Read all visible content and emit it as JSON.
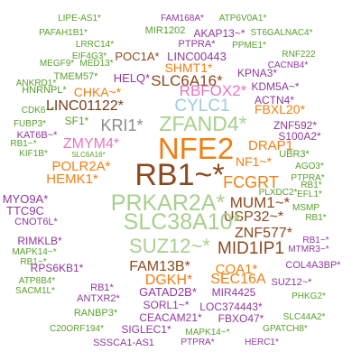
{
  "colors": {
    "background": "#ffffff",
    "green": "#5aa02c",
    "light_green": "#a8d08d",
    "orange": "#f07f12",
    "brown": "#8b4a1e",
    "purple": "#8e3a9d",
    "pink": "#e377c2",
    "light_blue": "#9ecae1",
    "gray": "#8c8c8c",
    "dark_brown": "#7a3b1a"
  },
  "words": [
    {
      "text": "LIPE-AS1*",
      "color": "green"
    },
    {
      "text": "FAM168A*",
      "color": "purple"
    },
    {
      "text": "ATP6V0A1*",
      "color": "green"
    },
    {
      "text": "PAFAH1B1*",
      "color": "green"
    },
    {
      "text": "MIR1202",
      "color": "green"
    },
    {
      "text": "AKAP13~*",
      "color": "purple"
    },
    {
      "text": "ST6GALNAC4*",
      "color": "green"
    },
    {
      "text": "LRRC14*",
      "color": "green"
    },
    {
      "text": "PTPRA*",
      "color": "purple"
    },
    {
      "text": "PPME1*",
      "color": "green"
    },
    {
      "text": "EIF4G3*",
      "color": "green"
    },
    {
      "text": "POC1A*",
      "color": "brown"
    },
    {
      "text": "LINC00443",
      "color": "purple"
    },
    {
      "text": "RNF222",
      "color": "green"
    },
    {
      "text": "MEGF9*",
      "color": "green"
    },
    {
      "text": "MED13*",
      "color": "green"
    },
    {
      "text": "SHMT1*",
      "color": "orange"
    },
    {
      "text": "CACNB4*",
      "color": "purple"
    },
    {
      "text": "ANKRD1*",
      "color": "green"
    },
    {
      "text": "TMEM57*",
      "color": "green"
    },
    {
      "text": "HELQ*",
      "color": "purple"
    },
    {
      "text": "SLC6A16*",
      "color": "brown"
    },
    {
      "text": "KPNA3*",
      "color": "purple"
    },
    {
      "text": "HNRNPL*",
      "color": "green"
    },
    {
      "text": "KDM5A~*",
      "color": "purple"
    },
    {
      "text": "CHKA~*",
      "color": "orange"
    },
    {
      "text": "RBFOX2*",
      "color": "pink"
    },
    {
      "text": "ACTN4*",
      "color": "purple"
    },
    {
      "text": "CDK6~*",
      "color": "green"
    },
    {
      "text": "LINC01122*",
      "color": "dark_brown"
    },
    {
      "text": "CYLC1",
      "color": "light_blue"
    },
    {
      "text": "FBXL20*",
      "color": "orange"
    },
    {
      "text": "FUBP3*",
      "color": "green"
    },
    {
      "text": "SF1*",
      "color": "green"
    },
    {
      "text": "KRI1*",
      "color": "gray"
    },
    {
      "text": "ZFAND4*",
      "color": "light_green"
    },
    {
      "text": "ZNF592*",
      "color": "purple"
    },
    {
      "text": "KAT6B~*",
      "color": "purple"
    },
    {
      "text": "S100A2*",
      "color": "purple"
    },
    {
      "text": "RB1~*",
      "color": "green"
    },
    {
      "text": "ZMYM4*",
      "color": "pink"
    },
    {
      "text": "NFE2",
      "color": "orange"
    },
    {
      "text": "DRAP1",
      "color": "orange"
    },
    {
      "text": "UBR3*",
      "color": "green"
    },
    {
      "text": "KIF1B*",
      "color": "green"
    },
    {
      "text": "SLC6A16*",
      "color": "green"
    },
    {
      "text": "NF1~*",
      "color": "orange"
    },
    {
      "text": "AGO3*",
      "color": "green"
    },
    {
      "text": "POLR2A*",
      "color": "orange"
    },
    {
      "text": "RB1~*",
      "color": "brown"
    },
    {
      "text": "PTPRA*",
      "color": "green"
    },
    {
      "text": "HEMK1*",
      "color": "orange"
    },
    {
      "text": "FCGRT",
      "color": "orange"
    },
    {
      "text": "RB1*",
      "color": "green"
    },
    {
      "text": "PLXDC2*",
      "color": "green"
    },
    {
      "text": "EFL1*",
      "color": "green"
    },
    {
      "text": "PRKAR2A*",
      "color": "light_green"
    },
    {
      "text": "MUM1~*",
      "color": "brown"
    },
    {
      "text": "MYO9A*",
      "color": "purple"
    },
    {
      "text": "MSMP",
      "color": "green"
    },
    {
      "text": "TTC9C",
      "color": "purple"
    },
    {
      "text": "USP32~*",
      "color": "brown"
    },
    {
      "text": "SLC38A10*",
      "color": "light_green"
    },
    {
      "text": "RB1*",
      "color": "green"
    },
    {
      "text": "CNOT6L*",
      "color": "purple"
    },
    {
      "text": "ZNF577*",
      "color": "brown"
    },
    {
      "text": "RB1~*",
      "color": "purple"
    },
    {
      "text": "RIMKLB*",
      "color": "purple"
    },
    {
      "text": "SUZ12~*",
      "color": "light_green"
    },
    {
      "text": "MTMR3~*",
      "color": "purple"
    },
    {
      "text": "MAPK14~*",
      "color": "green"
    },
    {
      "text": "MID1IP1",
      "color": "brown"
    },
    {
      "text": "RB1~*",
      "color": "green"
    },
    {
      "text": "COL4A3BP*",
      "color": "purple"
    },
    {
      "text": "RPS6KB1*",
      "color": "purple"
    },
    {
      "text": "FAM13B*",
      "color": "brown"
    },
    {
      "text": "COA1*",
      "color": "orange"
    },
    {
      "text": "ATP8B4*",
      "color": "green"
    },
    {
      "text": "SUZ12~*",
      "color": "purple"
    },
    {
      "text": "SACM1L*",
      "color": "green"
    },
    {
      "text": "RB1*",
      "color": "purple"
    },
    {
      "text": "DGKH*",
      "color": "orange"
    },
    {
      "text": "SEC16A",
      "color": "orange"
    },
    {
      "text": "MIR4425",
      "color": "purple"
    },
    {
      "text": "ANTXR2*",
      "color": "purple"
    },
    {
      "text": "GATAD2B*",
      "color": "purple"
    },
    {
      "text": "PHKG2*",
      "color": "green"
    },
    {
      "text": "SORL1~*",
      "color": "purple"
    },
    {
      "text": "LOC374443*",
      "color": "purple"
    },
    {
      "text": "RANBP3*",
      "color": "green"
    },
    {
      "text": "CEACAM21*",
      "color": "purple"
    },
    {
      "text": "FBXO47*",
      "color": "purple"
    },
    {
      "text": "SLC44A2*",
      "color": "green"
    },
    {
      "text": "C20ORF194*",
      "color": "green"
    },
    {
      "text": "SIGLEC1*",
      "color": "purple"
    },
    {
      "text": "MAPK14~*",
      "color": "green"
    },
    {
      "text": "GPATCH8*",
      "color": "green"
    },
    {
      "text": "SSSCA1-AS1",
      "color": "purple"
    },
    {
      "text": "PTPRA*",
      "color": "purple"
    },
    {
      "text": "HERC1*",
      "color": "purple"
    }
  ]
}
